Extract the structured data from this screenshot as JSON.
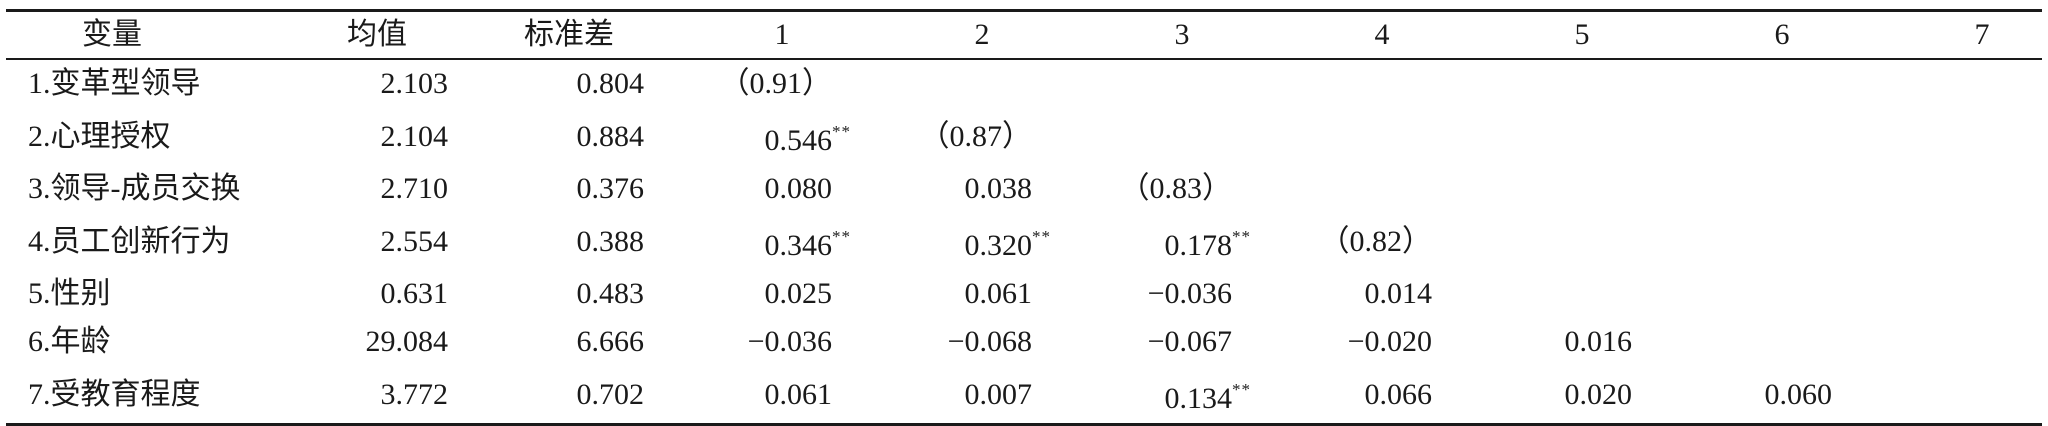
{
  "columns": [
    "变量",
    "均值",
    "标准差",
    "1",
    "2",
    "3",
    "4",
    "5",
    "6",
    "7"
  ],
  "rows": [
    {
      "name": "1.变革型领导",
      "mean": "2.103",
      "sd": "0.804",
      "cells": [
        {
          "v": "（0.91）",
          "s": ""
        },
        {
          "v": "",
          "s": ""
        },
        {
          "v": "",
          "s": ""
        },
        {
          "v": "",
          "s": ""
        },
        {
          "v": "",
          "s": ""
        },
        {
          "v": "",
          "s": ""
        },
        {
          "v": "",
          "s": ""
        }
      ]
    },
    {
      "name": "2.心理授权",
      "mean": "2.104",
      "sd": "0.884",
      "cells": [
        {
          "v": "0.546",
          "s": "**"
        },
        {
          "v": "（0.87）",
          "s": ""
        },
        {
          "v": "",
          "s": ""
        },
        {
          "v": "",
          "s": ""
        },
        {
          "v": "",
          "s": ""
        },
        {
          "v": "",
          "s": ""
        },
        {
          "v": "",
          "s": ""
        }
      ]
    },
    {
      "name": "3.领导-成员交换",
      "mean": "2.710",
      "sd": "0.376",
      "cells": [
        {
          "v": "0.080",
          "s": ""
        },
        {
          "v": "0.038",
          "s": ""
        },
        {
          "v": "（0.83）",
          "s": ""
        },
        {
          "v": "",
          "s": ""
        },
        {
          "v": "",
          "s": ""
        },
        {
          "v": "",
          "s": ""
        },
        {
          "v": "",
          "s": ""
        }
      ]
    },
    {
      "name": "4.员工创新行为",
      "mean": "2.554",
      "sd": "0.388",
      "cells": [
        {
          "v": "0.346",
          "s": "**"
        },
        {
          "v": "0.320",
          "s": "**"
        },
        {
          "v": "0.178",
          "s": "**"
        },
        {
          "v": "（0.82）",
          "s": ""
        },
        {
          "v": "",
          "s": ""
        },
        {
          "v": "",
          "s": ""
        },
        {
          "v": "",
          "s": ""
        }
      ]
    },
    {
      "name": "5.性别",
      "mean": "0.631",
      "sd": "0.483",
      "cells": [
        {
          "v": "0.025",
          "s": ""
        },
        {
          "v": "0.061",
          "s": ""
        },
        {
          "v": "−0.036",
          "s": ""
        },
        {
          "v": "0.014",
          "s": ""
        },
        {
          "v": "",
          "s": ""
        },
        {
          "v": "",
          "s": ""
        },
        {
          "v": "",
          "s": ""
        }
      ]
    },
    {
      "name": "6.年龄",
      "mean": "29.084",
      "sd": "6.666",
      "cells": [
        {
          "v": "−0.036",
          "s": ""
        },
        {
          "v": "−0.068",
          "s": ""
        },
        {
          "v": "−0.067",
          "s": ""
        },
        {
          "v": "−0.020",
          "s": ""
        },
        {
          "v": "0.016",
          "s": ""
        },
        {
          "v": "",
          "s": ""
        },
        {
          "v": "",
          "s": ""
        }
      ]
    },
    {
      "name": "7.受教育程度",
      "mean": "3.772",
      "sd": "0.702",
      "cells": [
        {
          "v": "0.061",
          "s": ""
        },
        {
          "v": "0.007",
          "s": ""
        },
        {
          "v": "0.134",
          "s": "**"
        },
        {
          "v": "0.066",
          "s": ""
        },
        {
          "v": "0.020",
          "s": ""
        },
        {
          "v": "0.060",
          "s": ""
        },
        {
          "v": "",
          "s": ""
        }
      ]
    }
  ]
}
